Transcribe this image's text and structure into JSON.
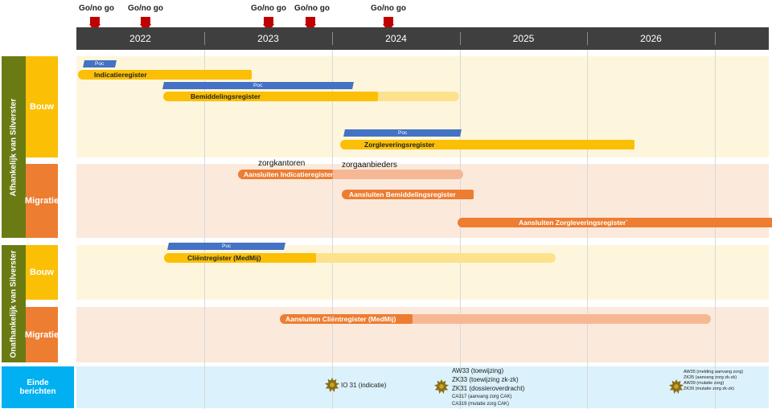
{
  "go_no_go": {
    "label": "Go/no go",
    "markers": [
      {
        "label": "Go/no go"
      },
      {
        "label": "Go/no go"
      },
      {
        "label": "Go/no go"
      },
      {
        "label": "Go/no go"
      },
      {
        "label": "Go/no go"
      }
    ]
  },
  "years": [
    "2022",
    "2023",
    "2024",
    "2025",
    "2026"
  ],
  "groups": {
    "dependent": "Afhankelijk van Silverster",
    "independent": "Onafhankelijk van Silverster"
  },
  "rows": {
    "bouw1": "Bouw",
    "migratie1": "Migratie",
    "bouw2": "Bouw",
    "migratie2": "Migratie",
    "einde": "Einde berichten"
  },
  "bars": {
    "poc_label": "Poc",
    "indicatieregister": "Indicatieregister",
    "bemiddelingsregister": "Bemiddelingsregister",
    "zorgleveringsregister": "Zorgleveringsregister",
    "aansluiten_indicatie": "Aansluiten Indicatieregister",
    "aansluiten_bemiddeling": "Aansluiten Bemiddelingsregister",
    "aansluiten_zorglevering": "Aansluiten Zorgleveringsregister`",
    "clientregister": "Cliëntregister (MedMij)",
    "aansluiten_client": "Aansluiten Cliëntregister (MedMij)"
  },
  "annotations": {
    "zorgkantoren": "zorgkantoren",
    "zorgaanbieders": "zorgaanbieders"
  },
  "messages": {
    "io31": "IO 31 (indicatie)",
    "group2": [
      "AW33 (toewijzing)",
      "ZK33 (toewijzing zk-zk)",
      "ZK31 (dossieroverdracht)"
    ],
    "group2_small": [
      "CA317 (aanvang zorg CAK)",
      "CA319 (mutatie zorg CAK)"
    ],
    "group3": [
      "AW35 (melding aanvang zorg)",
      "ZK35 (aanvang zorg zk-zk)",
      "AW39 (mutatie zorg)",
      "ZK39 (mutatie zorg zk-zk)"
    ]
  },
  "colors": {
    "timeline": "#3f3f3f",
    "go_no_go": "#c00000",
    "group": "#6b7b13",
    "bouw": "#fbbf05",
    "migratie": "#ed7d31",
    "einde": "#00b0f0",
    "poc": "#4472c4"
  }
}
